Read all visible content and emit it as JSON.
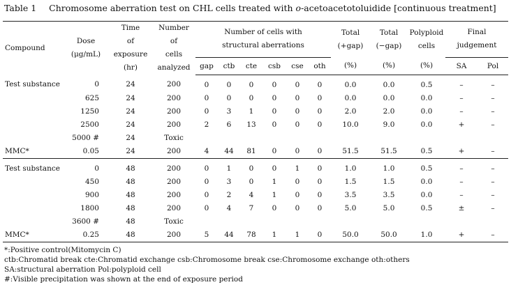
{
  "caption": {
    "label": "Table 1",
    "title_prefix": "Chromosome aberration test on CHL cells treated with ",
    "title_italic": "o",
    "title_suffix": "-acetoacetotoluidide [continuous treatment]"
  },
  "headers": {
    "compound": "Compound",
    "dose": "Dose",
    "dose_unit": "(μg/mL)",
    "time": "Time\nof\nexposure\n(hr)",
    "cells_analyzed": "Number\nof\ncells\nanalyzed",
    "aberrations_group": "Number of cells with\nstructural aberrations",
    "sub": [
      "gap",
      "ctb",
      "cte",
      "csb",
      "cse",
      "oth"
    ],
    "total_plus": "Total\n(+gap)",
    "total_minus": "Total\n(−gap)",
    "polyploid": "Polyploid\ncells",
    "percent": "(%)",
    "final": "Final\njudgement",
    "sa": "SA",
    "pol": "Pol"
  },
  "block1": [
    {
      "compound": "Test substance",
      "dose": "0",
      "time": "24",
      "n": "200",
      "gap": "0",
      "ctb": "0",
      "cte": "0",
      "csb": "0",
      "cse": "0",
      "oth": "0",
      "tp": "0.0",
      "tm": "0.0",
      "poly": "0.5",
      "sa": "–",
      "pol": "–"
    },
    {
      "compound": "",
      "dose": "625",
      "time": "24",
      "n": "200",
      "gap": "0",
      "ctb": "0",
      "cte": "0",
      "csb": "0",
      "cse": "0",
      "oth": "0",
      "tp": "0.0",
      "tm": "0.0",
      "poly": "0.0",
      "sa": "–",
      "pol": "–"
    },
    {
      "compound": "",
      "dose": "1250",
      "time": "24",
      "n": "200",
      "gap": "0",
      "ctb": "3",
      "cte": "1",
      "csb": "0",
      "cse": "0",
      "oth": "0",
      "tp": "2.0",
      "tm": "2.0",
      "poly": "0.0",
      "sa": "–",
      "pol": "–"
    },
    {
      "compound": "",
      "dose": "2500",
      "time": "24",
      "n": "200",
      "gap": "2",
      "ctb": "6",
      "cte": "13",
      "csb": "0",
      "cse": "0",
      "oth": "0",
      "tp": "10.0",
      "tm": "9.0",
      "poly": "0.0",
      "sa": "+",
      "pol": "–"
    },
    {
      "compound": "",
      "dose": "5000 #",
      "time": "24",
      "n": "Toxic",
      "gap": "",
      "ctb": "",
      "cte": "",
      "csb": "",
      "cse": "",
      "oth": "",
      "tp": "",
      "tm": "",
      "poly": "",
      "sa": "",
      "pol": ""
    },
    {
      "compound": "MMC*",
      "dose": "0.05",
      "time": "24",
      "n": "200",
      "gap": "4",
      "ctb": "44",
      "cte": "81",
      "csb": "0",
      "cse": "0",
      "oth": "0",
      "tp": "51.5",
      "tm": "51.5",
      "poly": "0.5",
      "sa": "+",
      "pol": "–"
    }
  ],
  "block2": [
    {
      "compound": "Test substance",
      "dose": "0",
      "time": "48",
      "n": "200",
      "gap": "0",
      "ctb": "1",
      "cte": "0",
      "csb": "0",
      "cse": "1",
      "oth": "0",
      "tp": "1.0",
      "tm": "1.0",
      "poly": "0.5",
      "sa": "–",
      "pol": "–"
    },
    {
      "compound": "",
      "dose": "450",
      "time": "48",
      "n": "200",
      "gap": "0",
      "ctb": "3",
      "cte": "0",
      "csb": "1",
      "cse": "0",
      "oth": "0",
      "tp": "1.5",
      "tm": "1.5",
      "poly": "0.0",
      "sa": "–",
      "pol": "–"
    },
    {
      "compound": "",
      "dose": "900",
      "time": "48",
      "n": "200",
      "gap": "0",
      "ctb": "2",
      "cte": "4",
      "csb": "1",
      "cse": "0",
      "oth": "0",
      "tp": "3.5",
      "tm": "3.5",
      "poly": "0.0",
      "sa": "–",
      "pol": "–"
    },
    {
      "compound": "",
      "dose": "1800",
      "time": "48",
      "n": "200",
      "gap": "0",
      "ctb": "4",
      "cte": "7",
      "csb": "0",
      "cse": "0",
      "oth": "0",
      "tp": "5.0",
      "tm": "5.0",
      "poly": "0.5",
      "sa": "±",
      "pol": "–"
    },
    {
      "compound": "",
      "dose": "3600 #",
      "time": "48",
      "n": "Toxic",
      "gap": "",
      "ctb": "",
      "cte": "",
      "csb": "",
      "cse": "",
      "oth": "",
      "tp": "",
      "tm": "",
      "poly": "",
      "sa": "",
      "pol": ""
    },
    {
      "compound": "MMC*",
      "dose": "0.25",
      "time": "48",
      "n": "200",
      "gap": "5",
      "ctb": "44",
      "cte": "78",
      "csb": "1",
      "cse": "1",
      "oth": "0",
      "tp": "50.0",
      "tm": "50.0",
      "poly": "1.0",
      "sa": "+",
      "pol": "–"
    }
  ],
  "notes": [
    "*:Positive control(Mitomycin C)",
    "ctb:Chromatid break   cte:Chromatid exchange   csb:Chromosome break   cse:Chromosome exchange   oth:others",
    "SA:structural aberration    Pol:polyploid cell",
    "#:Visible precipitation was shown at the end of exposure period"
  ]
}
